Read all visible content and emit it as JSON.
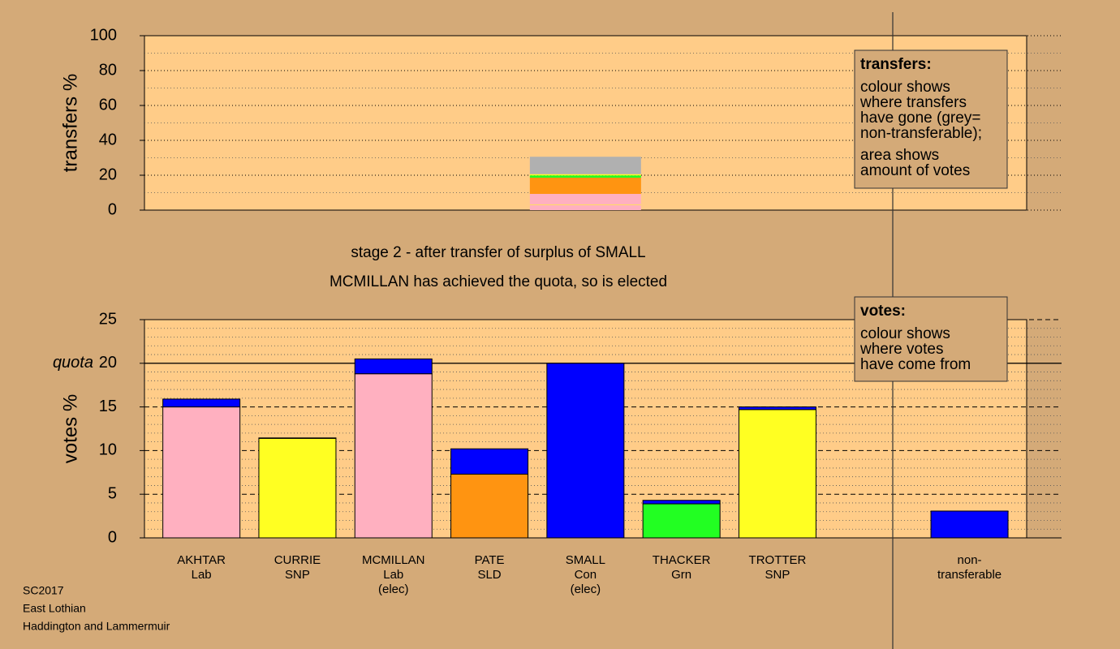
{
  "chart_data": [
    {
      "type": "stacked_bar",
      "ylabel": "transfers %",
      "ylim": [
        0,
        100
      ],
      "yticks": [
        0,
        20,
        40,
        60,
        80,
        100
      ],
      "minor_grid": [
        10,
        30,
        50,
        70,
        90
      ],
      "grid_style": "dotted",
      "values": [
        3,
        0.3,
        6,
        9.3,
        1.3,
        0.7,
        10
      ],
      "colors": [
        "#ffb0c0",
        "#ffff22",
        "#ffb0c0",
        "#ff9411",
        "#22ff22",
        "#ffff22",
        "#b0b0b0"
      ],
      "legend": {
        "title": "transfers:",
        "lines": [
          "colour shows",
          "where transfers",
          "have gone (grey=",
          "non-transferable);"
        ],
        "lines2": [
          "area shows",
          "amount of votes"
        ]
      }
    },
    {
      "type": "stacked_bar_groups",
      "title": "stage 2 - after transfer of surplus of SMALL",
      "subtitle": "MCMILLAN has achieved the quota, so is elected",
      "ylabel": "votes %",
      "ylim": [
        0,
        25
      ],
      "yticks": [
        0,
        5,
        10,
        15,
        20,
        25
      ],
      "minor_grid": [
        1,
        2,
        3,
        4,
        6,
        7,
        8,
        9,
        11,
        12,
        13,
        14,
        16,
        17,
        18,
        19,
        21,
        22,
        23,
        24
      ],
      "grid_style": "dashed",
      "quota": {
        "value": 20,
        "label": "quota"
      },
      "categories": [
        [
          "AKHTAR",
          "Lab"
        ],
        [
          "CURRIE",
          "SNP"
        ],
        [
          "MCMILLAN",
          "Lab",
          "(elec)"
        ],
        [
          "PATE",
          "SLD"
        ],
        [
          "SMALL",
          "Con",
          "(elec)"
        ],
        [
          "THACKER",
          "Grn"
        ],
        [
          "TROTTER",
          "SNP"
        ],
        null,
        [
          "non-",
          "transferable"
        ]
      ],
      "series": [
        {
          "colors": [
            "#ffb0c0",
            "#ffff22",
            "#ffb0c0",
            "#ff9411",
            "#0000ff",
            "#22ff22",
            "#ffff22",
            null,
            null
          ],
          "values": [
            15.0,
            11.4,
            18.8,
            7.3,
            20.0,
            3.9,
            14.7,
            null,
            null
          ]
        },
        {
          "color": "#0000ff",
          "values": [
            0.9,
            0.05,
            1.7,
            2.9,
            0,
            0.4,
            0.3,
            null,
            3.07
          ]
        }
      ],
      "legend": {
        "title": "votes:",
        "lines": [
          "colour shows",
          "where votes",
          "have come from"
        ]
      }
    }
  ],
  "footer": [
    "SC2017",
    "East Lothian",
    "Haddington and Lammermuir"
  ]
}
